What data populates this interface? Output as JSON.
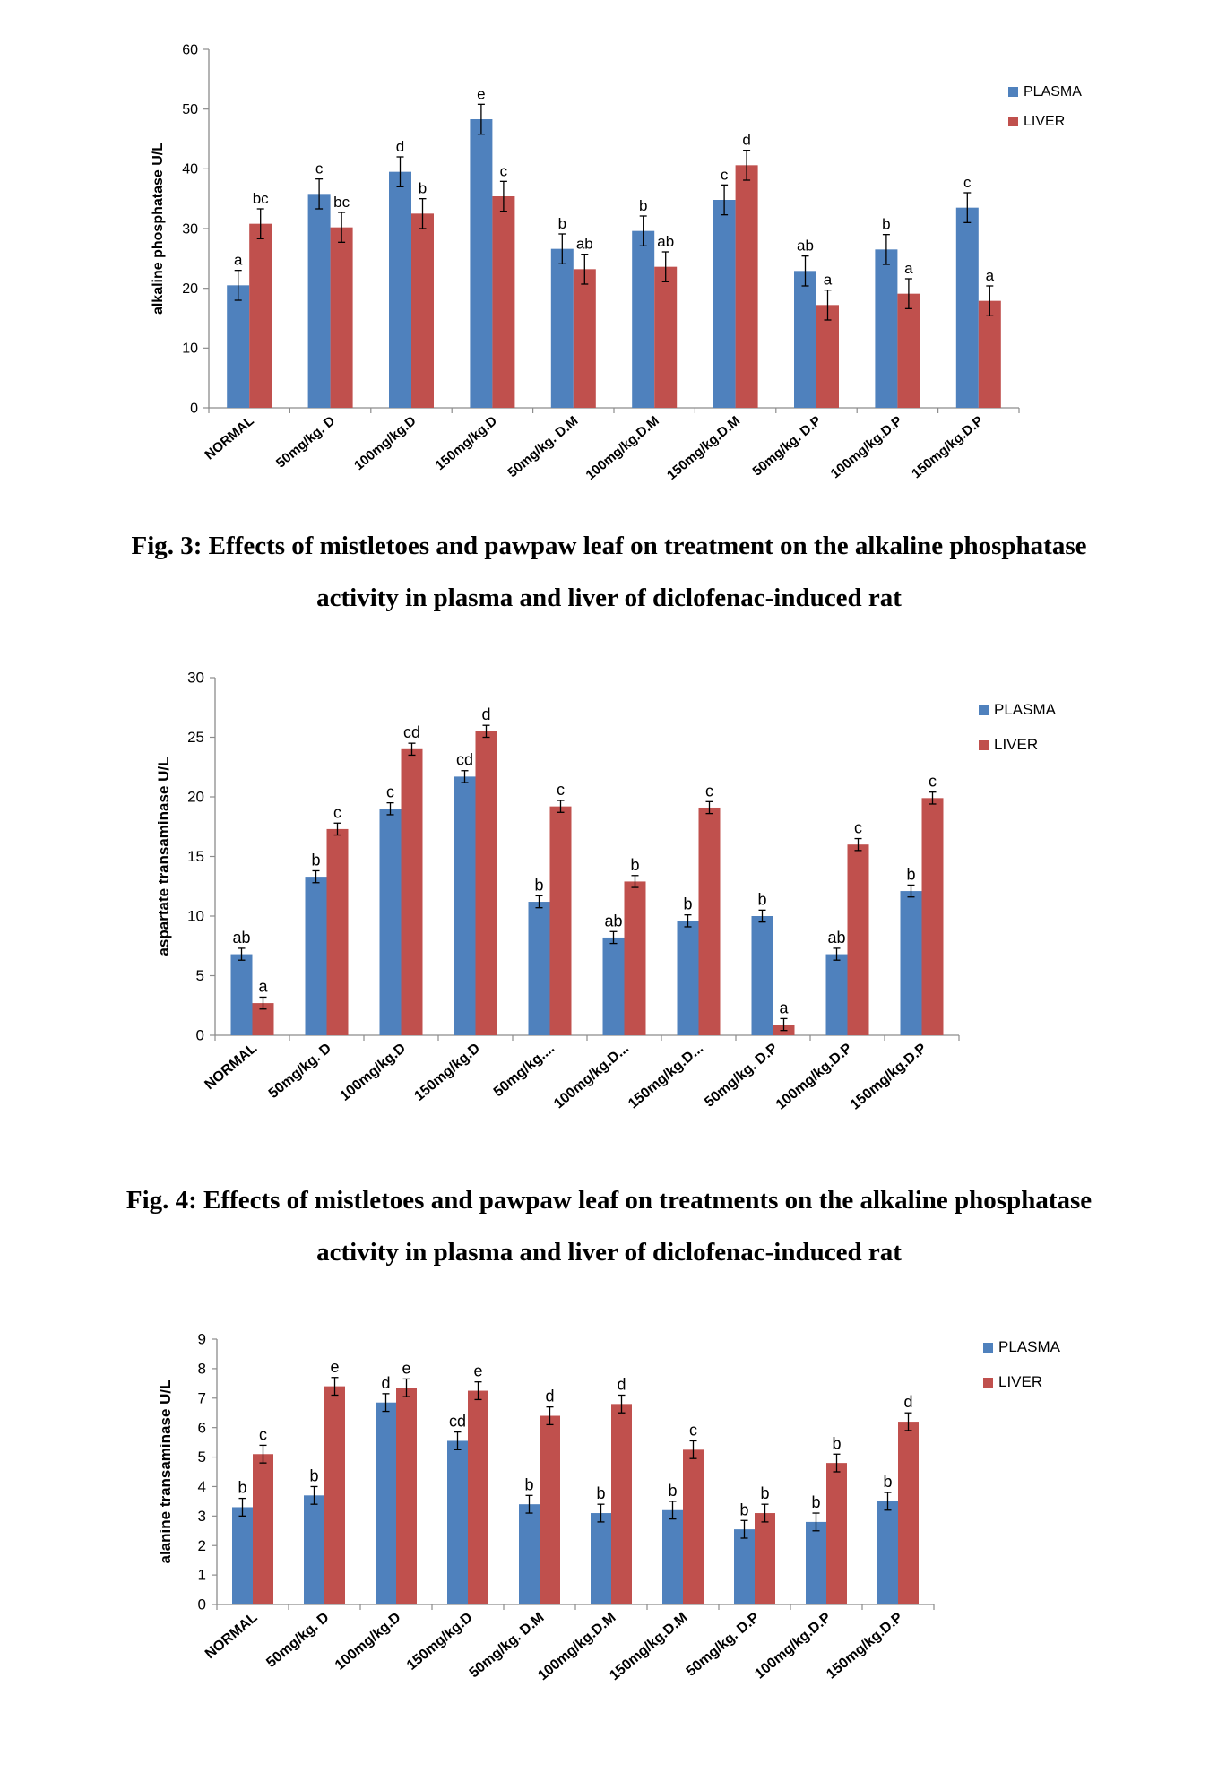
{
  "legend": {
    "plasma": "PLASMA",
    "liver": "LIVER"
  },
  "colors": {
    "plasma": "#4f81bd",
    "liver": "#c0504d",
    "axis": "#8c8c8c"
  },
  "figures": [
    {
      "caption_line1": "Fig. 3: Effects of mistletoes and pawpaw leaf on treatment on the alkaline phosphatase",
      "caption_line2": "activity in plasma and liver of diclofenac-induced rat"
    },
    {
      "caption_line1": "Fig. 4: Effects of mistletoes and pawpaw leaf on treatments on the alkaline phosphatase",
      "caption_line2": "activity in plasma and liver of diclofenac-induced rat"
    }
  ],
  "chart_data": [
    {
      "type": "bar",
      "ylabel": "alkaline phosphatase  U/L",
      "ylim": [
        0,
        60
      ],
      "yticks": [
        "0",
        "10",
        "20",
        "30",
        "40",
        "50",
        "60"
      ],
      "categories": [
        "NORMAL",
        "50mg/kg. D",
        "100mg/kg.D",
        "150mg/kg.D",
        "50mg/kg. D.M",
        "100mg/kg.D.M",
        "150mg/kg.D.M",
        "50mg/kg. D.P",
        "100mg/kg.D.P",
        "150mg/kg.D.P"
      ],
      "legend_position": "top-right",
      "series": [
        {
          "name": "PLASMA",
          "values": [
            20.5,
            35.8,
            39.5,
            48.3,
            26.6,
            29.6,
            34.8,
            22.9,
            26.5,
            33.5
          ],
          "errors": [
            2.5,
            2.5,
            2.5,
            2.5,
            2.5,
            2.5,
            2.5,
            2.5,
            2.5,
            2.5
          ],
          "letters": [
            "a",
            "c",
            "d",
            "e",
            "b",
            "b",
            "c",
            "ab",
            "b",
            "c"
          ]
        },
        {
          "name": "LIVER",
          "values": [
            30.8,
            30.2,
            32.5,
            35.4,
            23.2,
            23.6,
            40.6,
            17.2,
            19.1,
            17.9
          ],
          "errors": [
            2.5,
            2.5,
            2.5,
            2.5,
            2.5,
            2.5,
            2.5,
            2.5,
            2.5,
            2.5
          ],
          "letters": [
            "bc",
            "bc",
            "b",
            "c",
            "ab",
            "ab",
            "d",
            "a",
            "a",
            "a"
          ]
        }
      ]
    },
    {
      "type": "bar",
      "ylabel": "aspartate transaminase U/L",
      "ylim": [
        0,
        30
      ],
      "yticks": [
        "0",
        "5",
        "10",
        "15",
        "20",
        "25",
        "30"
      ],
      "categories": [
        "NORMAL",
        "50mg/kg. D",
        "100mg/kg.D",
        "150mg/kg.D",
        "50mg/kg....",
        "100mg/kg.D...",
        "150mg/kg.D...",
        "50mg/kg. D.P",
        "100mg/kg.D.P",
        "150mg/kg.D.P"
      ],
      "legend_position": "top-right",
      "series": [
        {
          "name": "PLASMA",
          "values": [
            6.8,
            13.3,
            19.0,
            21.7,
            11.2,
            8.2,
            9.6,
            10.0,
            6.8,
            12.1
          ],
          "errors": [
            0.5,
            0.5,
            0.5,
            0.5,
            0.5,
            0.5,
            0.5,
            0.5,
            0.5,
            0.5
          ],
          "letters": [
            "ab",
            "b",
            "c",
            "cd",
            "b",
            "ab",
            "b",
            "b",
            "ab",
            "b"
          ]
        },
        {
          "name": "LIVER",
          "values": [
            2.7,
            17.3,
            24.0,
            25.5,
            19.2,
            12.9,
            19.1,
            0.9,
            16.0,
            19.9
          ],
          "errors": [
            0.5,
            0.5,
            0.5,
            0.5,
            0.5,
            0.5,
            0.5,
            0.5,
            0.5,
            0.5
          ],
          "letters": [
            "a",
            "c",
            "cd",
            "d",
            "c",
            "b",
            "c",
            "a",
            "c",
            "c"
          ]
        }
      ]
    },
    {
      "type": "bar",
      "ylabel": "alanine transaminase  U/L",
      "ylim": [
        0,
        9
      ],
      "yticks": [
        "0",
        "1",
        "2",
        "3",
        "4",
        "5",
        "6",
        "7",
        "8",
        "9"
      ],
      "categories": [
        "NORMAL",
        "50mg/kg. D",
        "100mg/kg.D",
        "150mg/kg.D",
        "50mg/kg. D.M",
        "100mg/kg.D.M",
        "150mg/kg.D.M",
        "50mg/kg. D.P",
        "100mg/kg.D.P",
        "150mg/kg.D.P"
      ],
      "legend_position": "top-right",
      "series": [
        {
          "name": "PLASMA",
          "values": [
            3.3,
            3.7,
            6.85,
            5.55,
            3.4,
            3.1,
            3.2,
            2.55,
            2.8,
            3.5
          ],
          "errors": [
            0.3,
            0.3,
            0.3,
            0.3,
            0.3,
            0.3,
            0.3,
            0.3,
            0.3,
            0.3
          ],
          "letters": [
            "b",
            "b",
            "d",
            "cd",
            "b",
            "b",
            "b",
            "b",
            "b",
            "b"
          ]
        },
        {
          "name": "LIVER",
          "values": [
            5.1,
            7.4,
            7.35,
            7.25,
            6.4,
            6.8,
            5.25,
            3.1,
            4.8,
            6.2
          ],
          "errors": [
            0.3,
            0.3,
            0.3,
            0.3,
            0.3,
            0.3,
            0.3,
            0.3,
            0.3,
            0.3
          ],
          "letters": [
            "c",
            "e",
            "e",
            "e",
            "d",
            "d",
            "c",
            "b",
            "b",
            "d"
          ]
        }
      ]
    }
  ]
}
